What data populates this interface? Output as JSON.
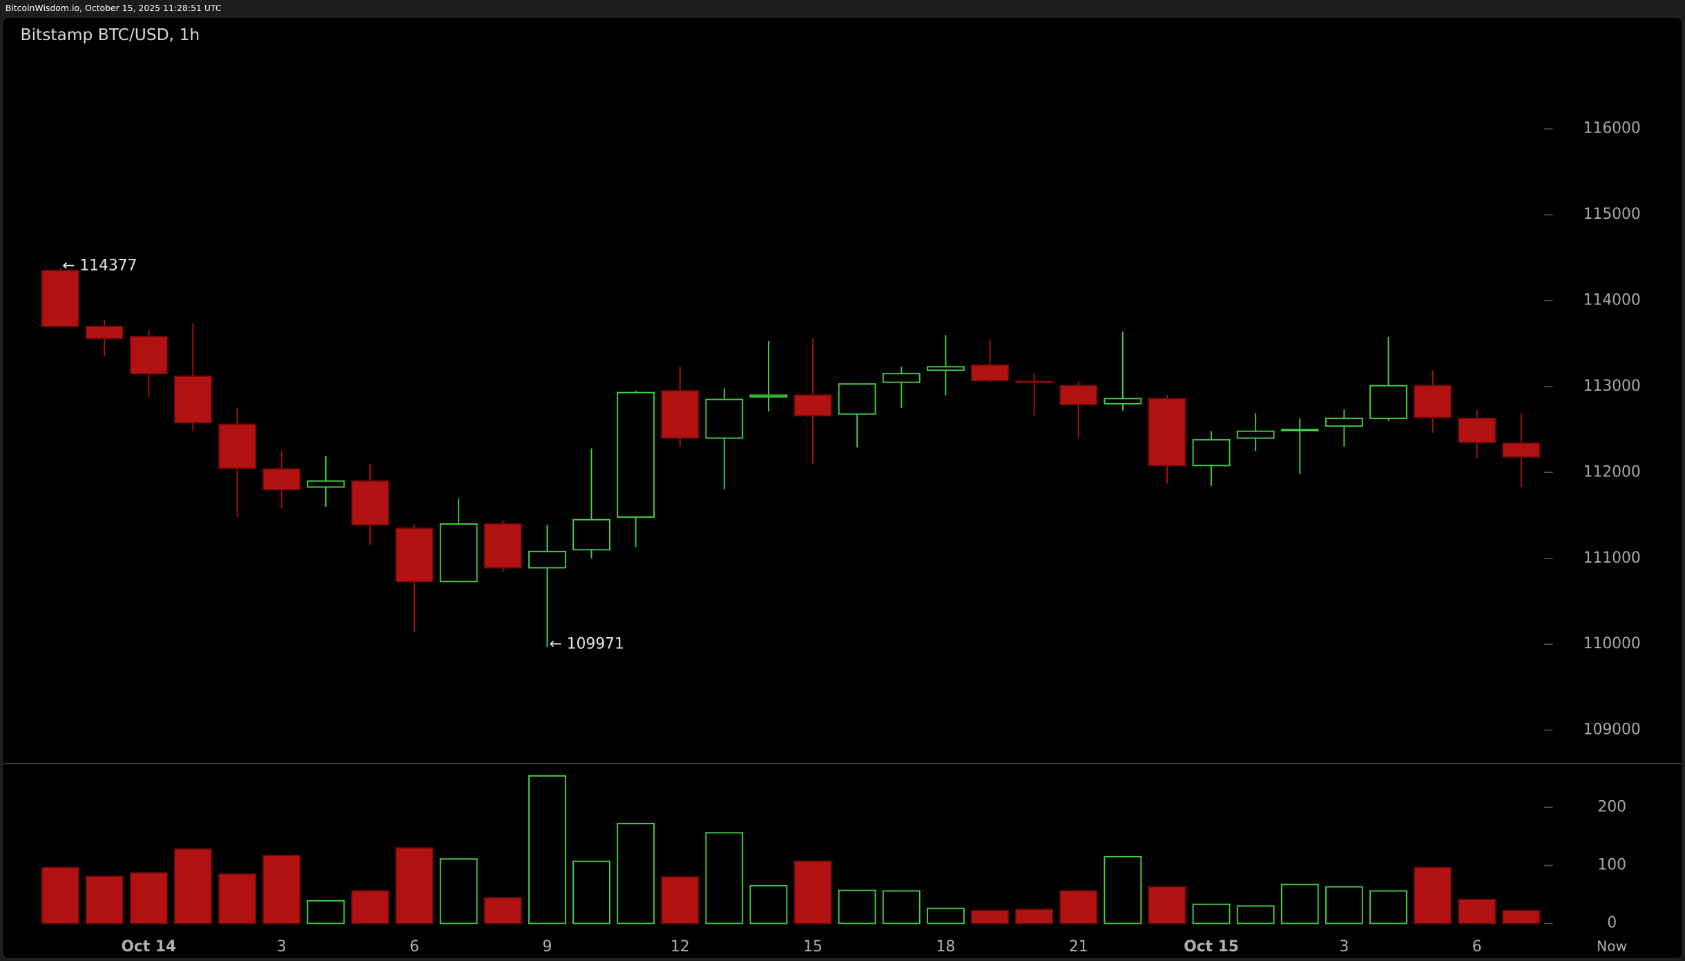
{
  "header": {
    "text": "BitcoinWisdom.io, October 15, 2025 11:28:51 UTC"
  },
  "chart_data": {
    "type": "candlestick",
    "title": "Bitstamp BTC/USD, 1h",
    "categories": [
      null,
      null,
      "Oct 14",
      null,
      null,
      "3",
      null,
      null,
      "6",
      null,
      null,
      "9",
      null,
      null,
      "12",
      null,
      null,
      "15",
      null,
      null,
      "18",
      null,
      null,
      "21",
      null,
      null,
      "Oct 15",
      null,
      null,
      "3",
      null,
      null,
      "6",
      null
    ],
    "x_end_label": "Now",
    "open": [
      114350,
      113700,
      113580,
      113120,
      112560,
      112040,
      111830,
      111900,
      111350,
      110730,
      111400,
      110890,
      111100,
      111480,
      112950,
      112400,
      112880,
      112900,
      112680,
      113050,
      113190,
      113250,
      113060,
      113010,
      112800,
      112860,
      112080,
      112400,
      112490,
      112540,
      112630,
      113010,
      112630,
      112340
    ],
    "high": [
      114377,
      113780,
      113660,
      113740,
      112750,
      112250,
      112190,
      112100,
      111400,
      111700,
      111440,
      111390,
      112280,
      112950,
      113230,
      112980,
      113530,
      113560,
      113030,
      113230,
      113600,
      113550,
      113160,
      113060,
      113640,
      112900,
      112480,
      112690,
      112630,
      112730,
      113580,
      113190,
      112730,
      112680
    ],
    "low": [
      113700,
      113350,
      112880,
      112480,
      111480,
      111580,
      111600,
      111160,
      110140,
      110730,
      110840,
      109971,
      111000,
      111130,
      112300,
      111800,
      112710,
      112100,
      112290,
      112750,
      112900,
      113050,
      112660,
      112400,
      112720,
      111870,
      111840,
      112250,
      111980,
      112300,
      112600,
      112460,
      112160,
      111830
    ],
    "close": [
      113700,
      113560,
      113150,
      112580,
      112050,
      111800,
      111900,
      111390,
      110730,
      111400,
      110890,
      111080,
      111450,
      112930,
      112400,
      112850,
      112900,
      112660,
      113030,
      113150,
      113230,
      113070,
      113050,
      112790,
      112860,
      112080,
      112380,
      112480,
      112500,
      112630,
      113010,
      112640,
      112350,
      112180
    ],
    "volume": [
      96,
      81,
      87,
      128,
      85,
      117,
      39,
      56,
      130,
      111,
      44,
      254,
      107,
      172,
      80,
      156,
      65,
      107,
      57,
      56,
      26,
      22,
      24,
      56,
      115,
      63,
      33,
      30,
      67,
      63,
      56,
      96,
      41,
      22
    ],
    "up_color": "#46d046",
    "down_color": "#b31212",
    "ylim": [
      108750,
      116875
    ],
    "yticks": [
      109000,
      110000,
      111000,
      112000,
      113000,
      114000,
      115000,
      116000
    ],
    "volume_ylim": [
      0,
      270
    ],
    "volume_yticks": [
      0,
      100,
      200
    ],
    "annotations": [
      {
        "label": "← 114377",
        "value": 114377
      },
      {
        "label": "← 109971",
        "value": 109971
      }
    ]
  }
}
